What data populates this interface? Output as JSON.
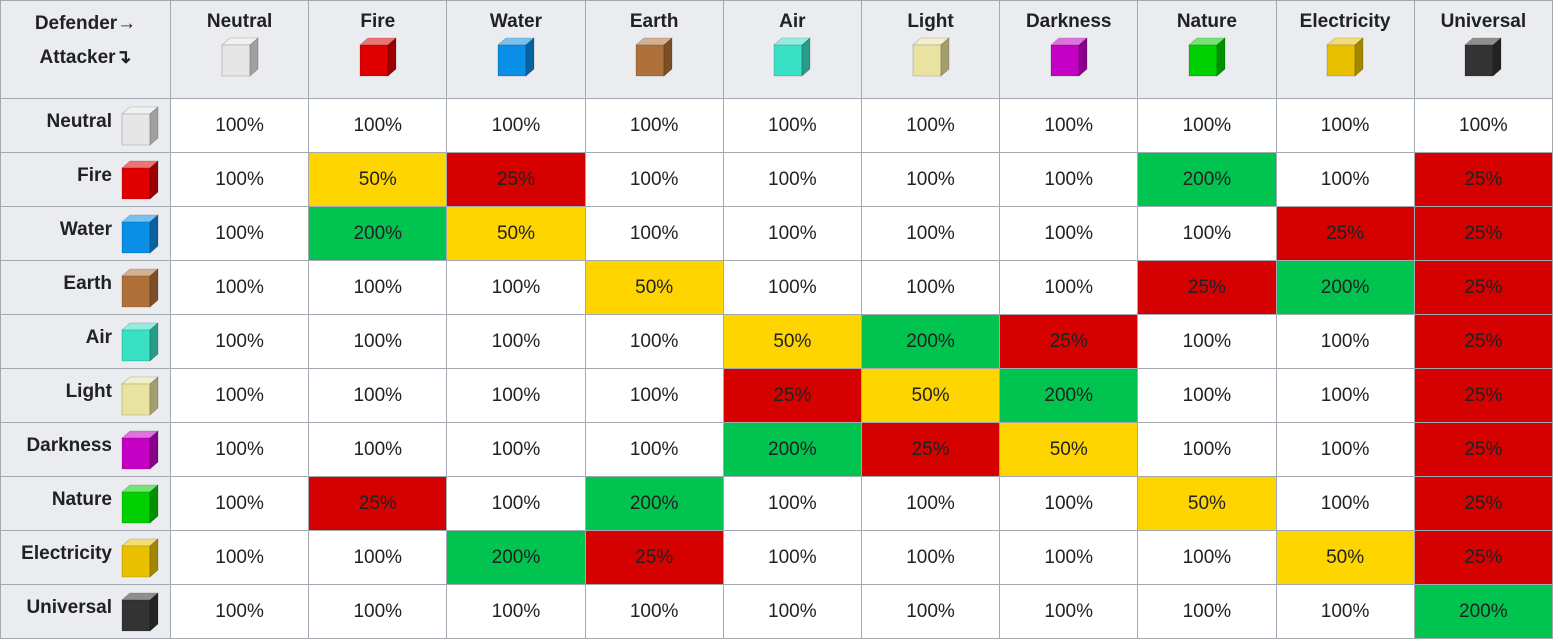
{
  "header": {
    "defender": "Defender→",
    "attacker": "Attacker↴"
  },
  "elements": [
    {
      "name": "Neutral",
      "color": "#e6e6e6"
    },
    {
      "name": "Fire",
      "color": "#e00000"
    },
    {
      "name": "Water",
      "color": "#0a8fe6"
    },
    {
      "name": "Earth",
      "color": "#b0703a"
    },
    {
      "name": "Air",
      "color": "#38e0c4"
    },
    {
      "name": "Light",
      "color": "#eae2a0"
    },
    {
      "name": "Darkness",
      "color": "#c400c4"
    },
    {
      "name": "Nature",
      "color": "#00d000"
    },
    {
      "name": "Electricity",
      "color": "#e8c000"
    },
    {
      "name": "Universal",
      "color": "#333333"
    }
  ],
  "fill_by_value": {
    "200%": "#00c44f",
    "50%": "#ffd500",
    "25%": "#d50000"
  },
  "table": {
    "rows": [
      [
        "100%",
        "100%",
        "100%",
        "100%",
        "100%",
        "100%",
        "100%",
        "100%",
        "100%",
        "100%"
      ],
      [
        "100%",
        "50%",
        "25%",
        "100%",
        "100%",
        "100%",
        "100%",
        "200%",
        "100%",
        "25%"
      ],
      [
        "100%",
        "200%",
        "50%",
        "100%",
        "100%",
        "100%",
        "100%",
        "100%",
        "25%",
        "25%"
      ],
      [
        "100%",
        "100%",
        "100%",
        "50%",
        "100%",
        "100%",
        "100%",
        "25%",
        "200%",
        "25%"
      ],
      [
        "100%",
        "100%",
        "100%",
        "100%",
        "50%",
        "200%",
        "25%",
        "100%",
        "100%",
        "25%"
      ],
      [
        "100%",
        "100%",
        "100%",
        "100%",
        "25%",
        "50%",
        "200%",
        "100%",
        "100%",
        "25%"
      ],
      [
        "100%",
        "100%",
        "100%",
        "100%",
        "200%",
        "25%",
        "50%",
        "100%",
        "100%",
        "25%"
      ],
      [
        "100%",
        "25%",
        "100%",
        "200%",
        "100%",
        "100%",
        "100%",
        "50%",
        "100%",
        "25%"
      ],
      [
        "100%",
        "100%",
        "200%",
        "25%",
        "100%",
        "100%",
        "100%",
        "100%",
        "50%",
        "25%"
      ],
      [
        "100%",
        "100%",
        "100%",
        "100%",
        "100%",
        "100%",
        "100%",
        "100%",
        "100%",
        "200%"
      ]
    ]
  }
}
